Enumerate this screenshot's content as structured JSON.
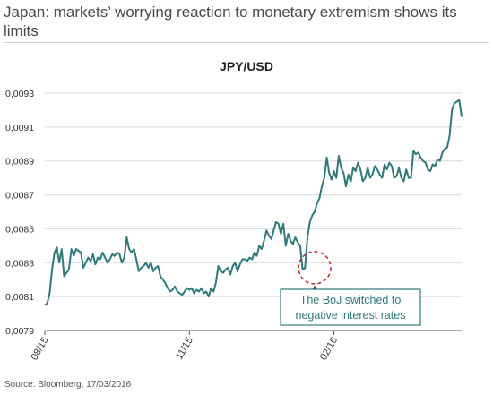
{
  "page": {
    "title": "Japan: markets’ worrying reaction to monetary extremism shows its limits",
    "source": "Source: Bloomberg, 17/03/2016"
  },
  "chart_data": {
    "type": "line",
    "title": "JPY/USD",
    "xlabel": "",
    "ylabel": "",
    "ylim": [
      0.0079,
      0.0093
    ],
    "yticks": [
      "0,0079",
      "0,0081",
      "0,0083",
      "0,0085",
      "0,0087",
      "0,0089",
      "0,0091",
      "0,0093"
    ],
    "ytick_values": [
      0.0079,
      0.0081,
      0.0083,
      0.0085,
      0.0087,
      0.0089,
      0.0091,
      0.0093
    ],
    "xticks": [
      "08/15",
      "11/15",
      "02/16"
    ],
    "xtick_index": [
      0,
      60,
      120
    ],
    "grid": "horizontal",
    "line_color": "#2e7a7a",
    "annotation": {
      "text_line1": "The BoJ switched to",
      "text_line2": "negative interest rates",
      "index": 112,
      "value": 0.00827,
      "color": "#b52025"
    },
    "series": [
      {
        "values": [
          0.00805,
          0.00806,
          0.00812,
          0.00826,
          0.00836,
          0.00839,
          0.0083,
          0.00838,
          0.00822,
          0.00824,
          0.00826,
          0.00838,
          0.00834,
          0.00838,
          0.00837,
          0.00836,
          0.00827,
          0.0083,
          0.00833,
          0.00831,
          0.00835,
          0.00829,
          0.00833,
          0.00832,
          0.00836,
          0.00833,
          0.0083,
          0.00832,
          0.00835,
          0.00834,
          0.00836,
          0.00835,
          0.0083,
          0.00833,
          0.00845,
          0.00838,
          0.00836,
          0.00838,
          0.00832,
          0.00825,
          0.00827,
          0.00828,
          0.0083,
          0.00827,
          0.0083,
          0.00825,
          0.00827,
          0.00828,
          0.00822,
          0.0082,
          0.00818,
          0.00815,
          0.00813,
          0.00814,
          0.00816,
          0.00813,
          0.00812,
          0.00811,
          0.00813,
          0.00815,
          0.00814,
          0.00815,
          0.00812,
          0.00814,
          0.00813,
          0.00815,
          0.00812,
          0.00813,
          0.0081,
          0.00815,
          0.00813,
          0.00818,
          0.00828,
          0.00825,
          0.00824,
          0.00826,
          0.00827,
          0.00823,
          0.00828,
          0.0083,
          0.00825,
          0.00829,
          0.00832,
          0.00832,
          0.00831,
          0.00833,
          0.00832,
          0.00836,
          0.00834,
          0.0084,
          0.00838,
          0.00843,
          0.00849,
          0.00846,
          0.00844,
          0.00849,
          0.00854,
          0.00853,
          0.00847,
          0.00853,
          0.0084,
          0.00847,
          0.00843,
          0.00841,
          0.00845,
          0.00842,
          0.0084,
          0.00826,
          0.00827,
          0.00845,
          0.00854,
          0.00858,
          0.0086,
          0.00865,
          0.00868,
          0.00875,
          0.0088,
          0.00892,
          0.00883,
          0.00879,
          0.00884,
          0.0088,
          0.00893,
          0.00886,
          0.00883,
          0.00875,
          0.00882,
          0.00878,
          0.00886,
          0.00884,
          0.00889,
          0.00885,
          0.00878,
          0.0088,
          0.00886,
          0.0088,
          0.00882,
          0.00887,
          0.00885,
          0.00882,
          0.0088,
          0.00888,
          0.00885,
          0.00889,
          0.00887,
          0.0088,
          0.00881,
          0.00886,
          0.0088,
          0.00878,
          0.00885,
          0.0088,
          0.0088,
          0.00896,
          0.00894,
          0.00895,
          0.00892,
          0.0089,
          0.00889,
          0.00885,
          0.00884,
          0.00888,
          0.00887,
          0.00891,
          0.0089,
          0.00895,
          0.00897,
          0.00898,
          0.00905,
          0.0092,
          0.00924,
          0.00925,
          0.00926,
          0.00916
        ]
      }
    ]
  }
}
